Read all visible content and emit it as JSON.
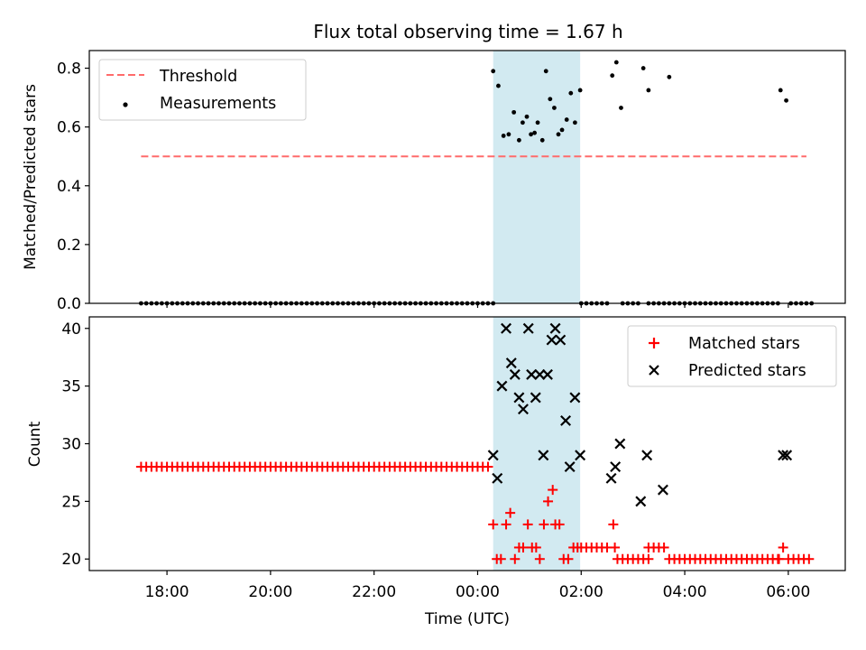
{
  "chart_data": {
    "type": "scatter",
    "title": "Flux total observing time = 1.67 h",
    "xlabel": "Time (UTC)",
    "x_unit": "hours UTC (values past 24 are the following day)",
    "xlim": [
      16.5,
      31.1
    ],
    "x_ticks": [
      {
        "value": 18,
        "label": "18:00"
      },
      {
        "value": 20,
        "label": "20:00"
      },
      {
        "value": 22,
        "label": "22:00"
      },
      {
        "value": 24,
        "label": "00:00"
      },
      {
        "value": 26,
        "label": "02:00"
      },
      {
        "value": 28,
        "label": "04:00"
      },
      {
        "value": 30,
        "label": "06:00"
      }
    ],
    "shaded_interval": {
      "x": [
        24.3,
        25.98
      ],
      "color": "#add8e6"
    },
    "panels": [
      {
        "name": "top",
        "ylabel": "Matched/Predicted stars",
        "ylim": [
          0,
          0.86
        ],
        "y_ticks": [
          "0.0",
          "0.2",
          "0.4",
          "0.6",
          "0.8"
        ],
        "legend": {
          "position": "upper-left",
          "entries": [
            "Threshold",
            "Measurements"
          ]
        },
        "series": [
          {
            "name": "Threshold",
            "kind": "dashed-line",
            "color": "#ff6b6b",
            "points": [
              [
                17.5,
                0.5
              ],
              [
                30.35,
                0.5
              ]
            ]
          },
          {
            "name": "Measurements",
            "kind": "dots",
            "color": "#000000",
            "zero_runs": [
              [
                17.5,
                24.3,
                0.1
              ],
              [
                26.0,
                26.5,
                0.1
              ],
              [
                26.8,
                27.1,
                0.1
              ],
              [
                27.3,
                27.7,
                0.1
              ],
              [
                27.8,
                29.8,
                0.1
              ],
              [
                30.05,
                30.45,
                0.1
              ]
            ],
            "points": [
              [
                24.3,
                0.79
              ],
              [
                24.4,
                0.74
              ],
              [
                24.5,
                0.57
              ],
              [
                24.6,
                0.575
              ],
              [
                24.7,
                0.65
              ],
              [
                24.8,
                0.555
              ],
              [
                24.87,
                0.615
              ],
              [
                24.95,
                0.635
              ],
              [
                25.03,
                0.575
              ],
              [
                25.1,
                0.58
              ],
              [
                25.16,
                0.615
              ],
              [
                25.25,
                0.555
              ],
              [
                25.32,
                0.79
              ],
              [
                25.4,
                0.695
              ],
              [
                25.48,
                0.665
              ],
              [
                25.56,
                0.575
              ],
              [
                25.63,
                0.59
              ],
              [
                25.72,
                0.625
              ],
              [
                25.8,
                0.715
              ],
              [
                25.88,
                0.615
              ],
              [
                25.98,
                0.725
              ],
              [
                26.6,
                0.775
              ],
              [
                26.68,
                0.82
              ],
              [
                26.77,
                0.665
              ],
              [
                27.2,
                0.8
              ],
              [
                27.3,
                0.725
              ],
              [
                27.7,
                0.77
              ],
              [
                29.85,
                0.725
              ],
              [
                29.96,
                0.69
              ]
            ]
          }
        ]
      },
      {
        "name": "bottom",
        "ylabel": "Count",
        "ylim": [
          19.0,
          41.0
        ],
        "y_ticks": [
          "20",
          "25",
          "30",
          "35",
          "40"
        ],
        "legend": {
          "position": "upper-right",
          "entries": [
            "Matched stars",
            "Predicted stars"
          ]
        },
        "series": [
          {
            "name": "Matched stars",
            "kind": "plus",
            "color": "#ff0000",
            "runs": [
              [
                17.5,
                24.25,
                0.1,
                28
              ],
              [
                26.0,
                26.5,
                0.1,
                21
              ],
              [
                26.7,
                27.3,
                0.1,
                20
              ],
              [
                27.3,
                27.6,
                0.1,
                21
              ],
              [
                27.7,
                29.8,
                0.1,
                20
              ],
              [
                30.0,
                30.45,
                0.1,
                20
              ]
            ],
            "points": [
              [
                24.3,
                23
              ],
              [
                24.37,
                20
              ],
              [
                24.45,
                20
              ],
              [
                24.55,
                23
              ],
              [
                24.63,
                24
              ],
              [
                24.72,
                20
              ],
              [
                24.8,
                21
              ],
              [
                24.88,
                21
              ],
              [
                24.97,
                23
              ],
              [
                25.05,
                21
              ],
              [
                25.13,
                21
              ],
              [
                25.2,
                20
              ],
              [
                25.28,
                23
              ],
              [
                25.36,
                25
              ],
              [
                25.45,
                26
              ],
              [
                25.5,
                23
              ],
              [
                25.58,
                23
              ],
              [
                25.66,
                20
              ],
              [
                25.75,
                20
              ],
              [
                25.85,
                21
              ],
              [
                25.93,
                21
              ],
              [
                26.62,
                23
              ],
              [
                26.65,
                21
              ],
              [
                29.9,
                21
              ],
              [
                29.82,
                20
              ]
            ]
          },
          {
            "name": "Predicted stars",
            "kind": "x",
            "color": "#000000",
            "points": [
              [
                24.3,
                29
              ],
              [
                24.38,
                27
              ],
              [
                24.47,
                35
              ],
              [
                24.55,
                40
              ],
              [
                24.65,
                37
              ],
              [
                24.72,
                36
              ],
              [
                24.8,
                34
              ],
              [
                24.88,
                33
              ],
              [
                24.98,
                40
              ],
              [
                25.04,
                36
              ],
              [
                25.12,
                34
              ],
              [
                25.2,
                36
              ],
              [
                25.27,
                29
              ],
              [
                25.35,
                36
              ],
              [
                25.43,
                39
              ],
              [
                25.5,
                40
              ],
              [
                25.6,
                39
              ],
              [
                25.7,
                32
              ],
              [
                25.78,
                28
              ],
              [
                25.88,
                34
              ],
              [
                25.98,
                29
              ],
              [
                26.58,
                27
              ],
              [
                26.66,
                28
              ],
              [
                26.75,
                30
              ],
              [
                27.15,
                25
              ],
              [
                27.27,
                29
              ],
              [
                27.58,
                26
              ],
              [
                29.9,
                29
              ],
              [
                29.97,
                29
              ]
            ]
          }
        ]
      }
    ]
  }
}
